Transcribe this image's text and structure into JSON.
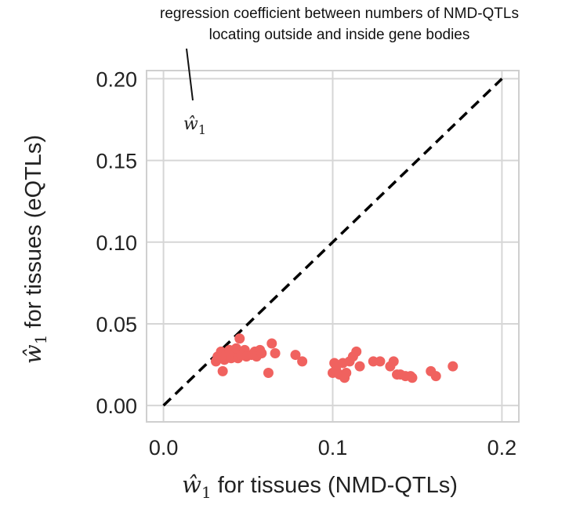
{
  "chart_data": {
    "type": "scatter",
    "title": "",
    "annotation": {
      "lines": [
        "regression coefficient between numbers of NMD-QTLs",
        "locating outside and inside  gene bodies"
      ],
      "label_symbol": "ŵ",
      "label_sub": "1"
    },
    "xlabel": {
      "symbol": "ŵ",
      "sub": "1",
      "text": " for tissues (NMD-QTLs)"
    },
    "ylabel": {
      "symbol": "ŵ",
      "sub": "1",
      "text": " for tissues (eQTLs)"
    },
    "xlim": [
      -0.01,
      0.21
    ],
    "ylim": [
      -0.01,
      0.205
    ],
    "xticks": [
      0.0,
      0.1,
      0.2
    ],
    "xtick_labels": [
      "0.0",
      "0.1",
      "0.2"
    ],
    "yticks": [
      0.0,
      0.05,
      0.1,
      0.15,
      0.2
    ],
    "ytick_labels": [
      "0.00",
      "0.05",
      "0.10",
      "0.15",
      "0.20"
    ],
    "grid": true,
    "reference_line": {
      "style": "dashed",
      "color": "#000000",
      "points": [
        [
          0.0,
          0.0
        ],
        [
          0.2,
          0.2
        ]
      ]
    },
    "series": [
      {
        "color": "#f0625f",
        "points": [
          [
            0.031,
            0.027
          ],
          [
            0.032,
            0.03
          ],
          [
            0.034,
            0.033
          ],
          [
            0.035,
            0.021
          ],
          [
            0.036,
            0.028
          ],
          [
            0.037,
            0.031
          ],
          [
            0.039,
            0.034
          ],
          [
            0.04,
            0.029
          ],
          [
            0.042,
            0.032
          ],
          [
            0.043,
            0.035
          ],
          [
            0.044,
            0.029
          ],
          [
            0.045,
            0.041
          ],
          [
            0.046,
            0.031
          ],
          [
            0.048,
            0.034
          ],
          [
            0.049,
            0.03
          ],
          [
            0.052,
            0.031
          ],
          [
            0.054,
            0.033
          ],
          [
            0.055,
            0.03
          ],
          [
            0.057,
            0.034
          ],
          [
            0.058,
            0.032
          ],
          [
            0.062,
            0.02
          ],
          [
            0.064,
            0.038
          ],
          [
            0.066,
            0.032
          ],
          [
            0.078,
            0.031
          ],
          [
            0.082,
            0.027
          ],
          [
            0.1,
            0.02
          ],
          [
            0.101,
            0.026
          ],
          [
            0.102,
            0.022
          ],
          [
            0.104,
            0.019
          ],
          [
            0.106,
            0.026
          ],
          [
            0.107,
            0.017
          ],
          [
            0.108,
            0.02
          ],
          [
            0.11,
            0.027
          ],
          [
            0.112,
            0.03
          ],
          [
            0.114,
            0.033
          ],
          [
            0.116,
            0.024
          ],
          [
            0.124,
            0.027
          ],
          [
            0.128,
            0.027
          ],
          [
            0.134,
            0.024
          ],
          [
            0.136,
            0.027
          ],
          [
            0.138,
            0.019
          ],
          [
            0.14,
            0.019
          ],
          [
            0.143,
            0.018
          ],
          [
            0.146,
            0.018
          ],
          [
            0.147,
            0.017
          ],
          [
            0.158,
            0.021
          ],
          [
            0.161,
            0.018
          ],
          [
            0.171,
            0.024
          ]
        ]
      }
    ]
  }
}
